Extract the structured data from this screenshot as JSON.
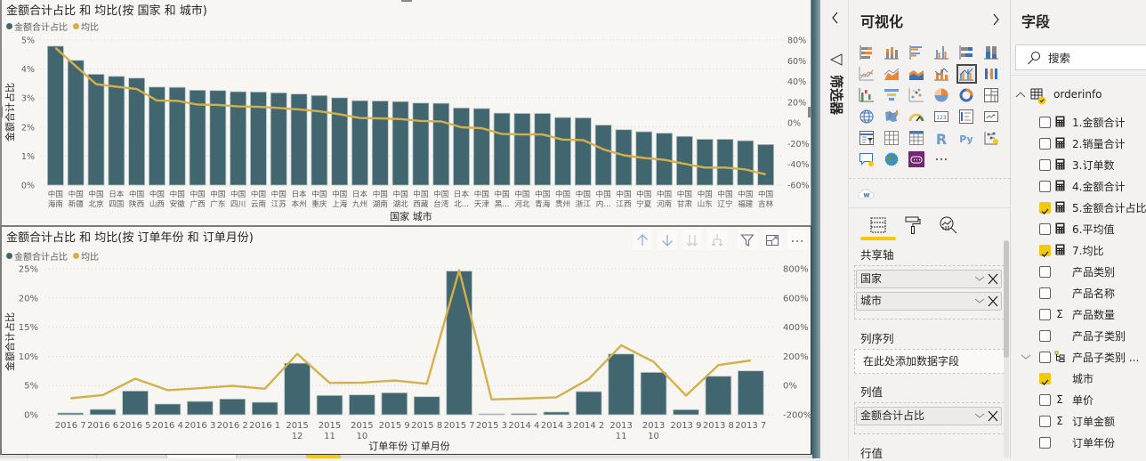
{
  "colors": {
    "bar": "#41666F",
    "line": "#D4B04C",
    "accent": "#F2C811",
    "canvas": "#F7F6F2",
    "pane": "#F3F2F1"
  },
  "chart_data": [
    {
      "type": "bar",
      "combo": "line-and-clustered-column",
      "title": "金额合计占比 和 均比(按 国家 和 城市)",
      "legend": {
        "position": "top-left",
        "entries": [
          {
            "name": "金额合计占比",
            "color": "#41666F"
          },
          {
            "name": "均比",
            "color": "#D4B04C"
          }
        ]
      },
      "xlabel": "国家 城市",
      "ylabel": "金额合计占比",
      "categories": [
        [
          "中国",
          "海南"
        ],
        [
          "中国",
          "新疆"
        ],
        [
          "中国",
          "北京"
        ],
        [
          "日本",
          "四国"
        ],
        [
          "中国",
          "陕西"
        ],
        [
          "中国",
          "山西"
        ],
        [
          "中国",
          "安徽"
        ],
        [
          "中国",
          "广西"
        ],
        [
          "中国",
          "广东"
        ],
        [
          "中国",
          "四川"
        ],
        [
          "中国",
          "云南"
        ],
        [
          "中国",
          "江苏"
        ],
        [
          "日本",
          "本州"
        ],
        [
          "中国",
          "重庆"
        ],
        [
          "中国",
          "上海"
        ],
        [
          "日本",
          "九州"
        ],
        [
          "中国",
          "湖南"
        ],
        [
          "中国",
          "湖北"
        ],
        [
          "中国",
          "西藏"
        ],
        [
          "中国",
          "台湾"
        ],
        [
          "日本",
          "北..."
        ],
        [
          "中国",
          "天津"
        ],
        [
          "中国",
          "黑..."
        ],
        [
          "中国",
          "河北"
        ],
        [
          "中国",
          "青海"
        ],
        [
          "中国",
          "贵州"
        ],
        [
          "中国",
          "浙江"
        ],
        [
          "中国",
          "内..."
        ],
        [
          "中国",
          "江西"
        ],
        [
          "中国",
          "宁夏"
        ],
        [
          "中国",
          "河南"
        ],
        [
          "中国",
          "甘肃"
        ],
        [
          "中国",
          "山东"
        ],
        [
          "中国",
          "辽宁"
        ],
        [
          "中国",
          "福建"
        ],
        [
          "中国",
          "吉林"
        ]
      ],
      "series": [
        {
          "name": "金额合计占比",
          "render": "bar",
          "axis": "left",
          "unit": "%",
          "values": [
            4.79,
            4.3,
            3.82,
            3.75,
            3.69,
            3.38,
            3.37,
            3.27,
            3.26,
            3.22,
            3.21,
            3.18,
            3.14,
            3.09,
            3.01,
            2.91,
            2.9,
            2.88,
            2.83,
            2.82,
            2.66,
            2.64,
            2.48,
            2.47,
            2.47,
            2.33,
            2.32,
            2.07,
            1.91,
            1.84,
            1.79,
            1.68,
            1.58,
            1.58,
            1.53,
            1.4
          ]
        },
        {
          "name": "均比",
          "render": "line",
          "axis": "right",
          "unit": "%",
          "values": [
            72.4,
            54.8,
            37.5,
            35.0,
            32.8,
            21.7,
            21.3,
            17.7,
            17.4,
            15.9,
            15.6,
            14.5,
            13.0,
            11.2,
            8.4,
            4.8,
            4.4,
            3.7,
            1.9,
            1.5,
            -4.2,
            -5.0,
            -10.7,
            -11.1,
            -11.1,
            -16.1,
            -16.5,
            -25.5,
            -31.2,
            -33.8,
            -35.6,
            -39.5,
            -43.1,
            -43.1,
            -44.9,
            -49.6
          ]
        }
      ],
      "ylim": [
        0,
        5
      ],
      "y_ticks": [
        0,
        1,
        2,
        3,
        4,
        5
      ],
      "y_tick_labels": [
        "0%",
        "1%",
        "2%",
        "3%",
        "4%",
        "5%"
      ],
      "y2lim": [
        -60,
        80
      ],
      "y2_ticks": [
        -60,
        -40,
        -20,
        0,
        20,
        40,
        60,
        80
      ],
      "y2_tick_labels": [
        "-60%",
        "-40%",
        "-20%",
        "0%",
        "20%",
        "40%",
        "60%",
        "80%"
      ],
      "grid": true
    },
    {
      "type": "bar",
      "combo": "line-and-clustered-column",
      "title": "金额合计占比 和 均比(按 订单年份 和 订单月份)",
      "legend": {
        "position": "top-left",
        "entries": [
          {
            "name": "金额合计占比",
            "color": "#41666F"
          },
          {
            "name": "均比",
            "color": "#D4B04C"
          }
        ]
      },
      "xlabel": "订单年份 订单月份",
      "ylabel": "金额合计占比",
      "categories": [
        "2016 7",
        "2016 6",
        "2016 5",
        "2016 4",
        "2016 3",
        "2016 2",
        "2016 1",
        "2015 12",
        "2015 11",
        "2015 10",
        "2015 9",
        "2015 8",
        "2015 7",
        "2015 3",
        "2014 4",
        "2014 3",
        "2014 2",
        "2013 11",
        "2013 10",
        "2013 9",
        "2013 8",
        "2013 7"
      ],
      "series": [
        {
          "name": "金额合计占比",
          "render": "bar",
          "axis": "left",
          "unit": "%",
          "values": [
            0.3,
            0.91,
            4.06,
            1.83,
            2.28,
            2.69,
            2.13,
            8.82,
            3.3,
            3.4,
            3.75,
            3.09,
            24.6,
            0.15,
            0.2,
            0.46,
            3.96,
            10.4,
            7.25,
            0.86,
            6.59,
            7.51
          ]
        },
        {
          "name": "均比",
          "render": "line",
          "axis": "right",
          "unit": "%",
          "values": [
            -87,
            -65,
            47,
            -32,
            -18,
            -2,
            -22,
            217,
            18,
            20,
            34,
            12,
            789,
            -95,
            -89,
            -81,
            45,
            276,
            162,
            -69,
            140,
            172
          ]
        }
      ],
      "ylim": [
        0,
        25
      ],
      "y_ticks": [
        0,
        5,
        10,
        15,
        20,
        25
      ],
      "y_tick_labels": [
        "0%",
        "5%",
        "10%",
        "15%",
        "20%",
        "25%"
      ],
      "y2lim": [
        -200,
        800
      ],
      "y2_ticks": [
        -200,
        0,
        200,
        400,
        600,
        800
      ],
      "y2_tick_labels": [
        "-200%",
        "0%",
        "200%",
        "400%",
        "600%",
        "800%"
      ],
      "grid": true
    }
  ],
  "visual_header": {
    "icons": [
      "drill-up",
      "drill-down",
      "go-to-next-level",
      "expand-all-down-one-level",
      "filter",
      "focus-mode",
      "more-options"
    ]
  },
  "filters_pane": {
    "label": "筛选器",
    "collapsed": true
  },
  "viz_pane": {
    "title": "可视化",
    "visuals": [
      {
        "name": "stacked-bar-chart"
      },
      {
        "name": "stacked-column-chart"
      },
      {
        "name": "clustered-bar-chart"
      },
      {
        "name": "clustered-column-chart"
      },
      {
        "name": "100-stacked-bar-chart"
      },
      {
        "name": "100-stacked-column-chart"
      },
      {
        "name": "line-chart"
      },
      {
        "name": "area-chart"
      },
      {
        "name": "stacked-area-chart"
      },
      {
        "name": "line-and-stacked-column-chart"
      },
      {
        "name": "line-and-clustered-column-chart",
        "selected": true
      },
      {
        "name": "ribbon-chart"
      },
      {
        "name": "waterfall-chart"
      },
      {
        "name": "funnel-chart"
      },
      {
        "name": "scatter-chart"
      },
      {
        "name": "pie-chart"
      },
      {
        "name": "donut-chart"
      },
      {
        "name": "treemap"
      },
      {
        "name": "map"
      },
      {
        "name": "filled-map"
      },
      {
        "name": "gauge"
      },
      {
        "name": "card"
      },
      {
        "name": "multi-row-card"
      },
      {
        "name": "kpi"
      },
      {
        "name": "slicer"
      },
      {
        "name": "table"
      },
      {
        "name": "matrix"
      },
      {
        "name": "r-script-visual"
      },
      {
        "name": "python-visual"
      },
      {
        "name": "key-influencers"
      },
      {
        "name": "qna"
      },
      {
        "name": "arcgis-map"
      },
      {
        "name": "custom-visual"
      },
      {
        "name": "more-visuals"
      }
    ],
    "imported_visual": {
      "name": "word-cloud",
      "glyph": "w"
    },
    "tabs": [
      {
        "name": "fields",
        "active": true
      },
      {
        "name": "format",
        "active": false
      },
      {
        "name": "analytics",
        "active": false
      }
    ],
    "wells": {
      "shared_axis": {
        "label": "共享轴",
        "fields": [
          "国家",
          "城市"
        ]
      },
      "column_series": {
        "label": "列序列",
        "placeholder": "在此处添加数据字段"
      },
      "column_values": {
        "label": "列值",
        "fields": [
          "金额合计占比"
        ]
      },
      "line_values": {
        "label": "行值"
      }
    }
  },
  "fields_pane": {
    "title": "字段",
    "search_placeholder": "搜索",
    "search_value": "",
    "table": {
      "name": "orderinfo",
      "expanded": true,
      "has_selection": true
    },
    "fields": [
      {
        "label": "1.金额合计",
        "type": "measure",
        "checked": false
      },
      {
        "label": "2.销量合计",
        "type": "measure",
        "checked": false
      },
      {
        "label": "3.订单数",
        "type": "measure",
        "checked": false
      },
      {
        "label": "4.金额合计",
        "type": "measure",
        "checked": false
      },
      {
        "label": "5.金额合计占比",
        "type": "measure",
        "checked": true
      },
      {
        "label": "6.平均值",
        "type": "measure",
        "checked": false
      },
      {
        "label": "7.均比",
        "type": "measure",
        "checked": true
      },
      {
        "label": "产品类别",
        "type": "text",
        "checked": false
      },
      {
        "label": "产品名称",
        "type": "text",
        "checked": false
      },
      {
        "label": "产品数量",
        "type": "sum",
        "checked": false
      },
      {
        "label": "产品子类别",
        "type": "text",
        "checked": false
      },
      {
        "label": "产品子类别 ...",
        "type": "hierarchy",
        "checked": false,
        "expandable": true
      },
      {
        "label": "城市",
        "type": "text",
        "checked": true
      },
      {
        "label": "单价",
        "type": "sum",
        "checked": false
      },
      {
        "label": "订单金额",
        "type": "sum",
        "checked": false
      },
      {
        "label": "订单年份",
        "type": "text",
        "checked": false
      }
    ]
  }
}
